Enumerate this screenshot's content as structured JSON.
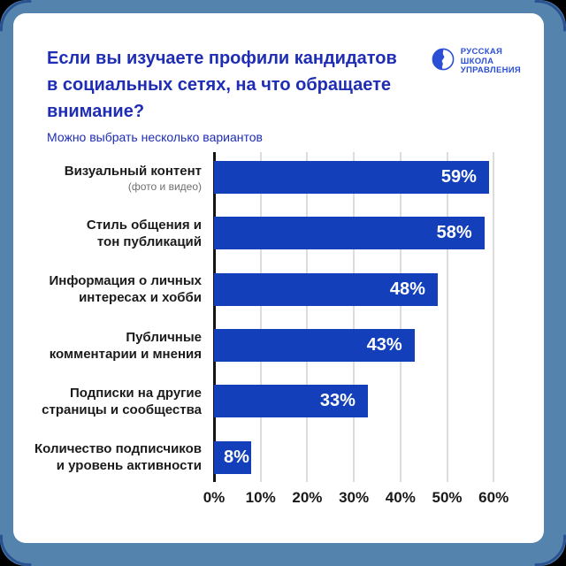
{
  "frame": {
    "outer_bg": "#5484ae",
    "corner_arc_color": "#2a5291",
    "card_bg": "#ffffff"
  },
  "header": {
    "title_lines": [
      "Если вы изучаете профили кандидатов",
      "в социальных сетях, на что обращаете",
      "внимание?"
    ],
    "title_full": "Если вы изучаете профили кандидатов в социальных сетях, на что обращаете внимание?",
    "subtitle": "Можно выбрать несколько вариантов",
    "title_color": "#1e2db4"
  },
  "logo": {
    "lines": [
      "РУССКАЯ",
      "ШКОЛА",
      "УПРАВЛЕНИЯ"
    ],
    "color": "#2b4fd4",
    "icon": "globe-face-icon"
  },
  "chart_data": {
    "type": "bar",
    "orientation": "horizontal",
    "title": "Если вы изучаете профили кандидатов в социальных сетях, на что обращаете внимание?",
    "subtitle": "Можно выбрать несколько вариантов",
    "bar_color": "#1340ba",
    "grid": true,
    "xlim": [
      0,
      60
    ],
    "categories": [
      "Визуальный контент (фото и видео)",
      "Стиль общения и тон публикаций",
      "Информация о личных интересах и хобби",
      "Публичные комментарии и мнения",
      "Подписки на другие страницы и сообщества",
      "Количество подписчиков и уровень активности"
    ],
    "values": [
      59,
      58,
      48,
      43,
      33,
      8
    ],
    "rows": [
      {
        "label_lines": [
          "Визуальный контент"
        ],
        "sub": "(фото и видео)",
        "value": 59,
        "display": "59%"
      },
      {
        "label_lines": [
          "Стиль общения и",
          "тон публикаций"
        ],
        "sub": null,
        "value": 58,
        "display": "58%"
      },
      {
        "label_lines": [
          "Информация о личных",
          "интересах и хобби"
        ],
        "sub": null,
        "value": 48,
        "display": "48%"
      },
      {
        "label_lines": [
          "Публичные",
          "комментарии и мнения"
        ],
        "sub": null,
        "value": 43,
        "display": "43%"
      },
      {
        "label_lines": [
          "Подписки на другие",
          "страницы и сообщества"
        ],
        "sub": null,
        "value": 33,
        "display": "33%"
      },
      {
        "label_lines": [
          "Количество подписчиков",
          "и уровень активности"
        ],
        "sub": null,
        "value": 8,
        "display": "8%"
      }
    ],
    "x_ticks": [
      {
        "value": 0,
        "label": "0%"
      },
      {
        "value": 10,
        "label": "10%"
      },
      {
        "value": 20,
        "label": "20%"
      },
      {
        "value": 30,
        "label": "30%"
      },
      {
        "value": 40,
        "label": "40%"
      },
      {
        "value": 50,
        "label": "50%"
      },
      {
        "value": 60,
        "label": "60%"
      }
    ]
  }
}
